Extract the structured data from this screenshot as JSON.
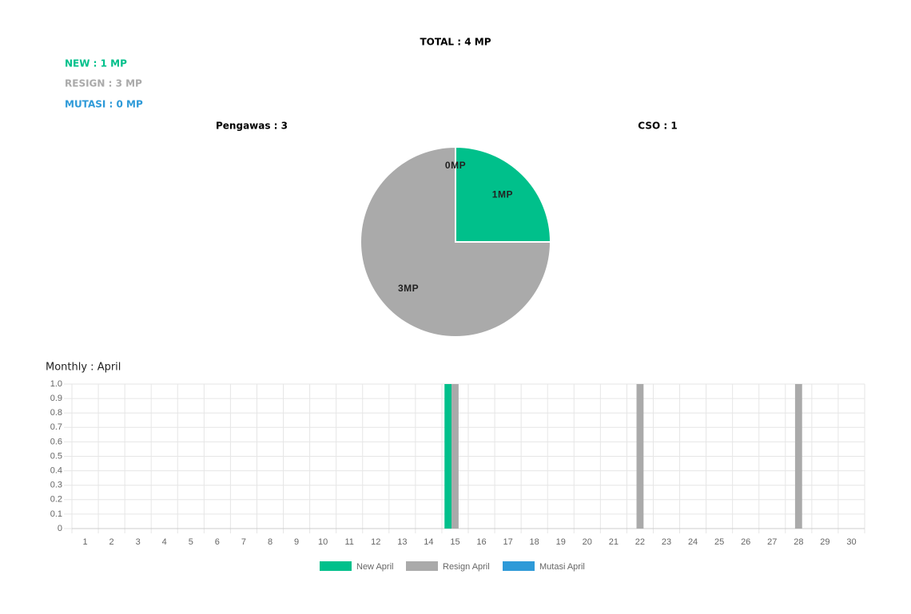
{
  "summary": {
    "total": "TOTAL : 4 MP",
    "new": "NEW : 1 MP",
    "resign": "RESIGN : 3 MP",
    "mutasi": "MUTASI : 0 MP",
    "groups": [
      "Pengawas : 3",
      "CSO : 1"
    ]
  },
  "chart_data": [
    {
      "type": "pie",
      "values": [
        1,
        3,
        0
      ],
      "value_labels": [
        "1MP",
        "3MP",
        "0MP"
      ],
      "colors": [
        "#00c08b",
        "#aaaaaa",
        "#2e9ad8"
      ]
    },
    {
      "type": "bar",
      "title": "Monthly : April",
      "categories": [
        "1",
        "2",
        "3",
        "4",
        "5",
        "6",
        "7",
        "8",
        "9",
        "10",
        "11",
        "12",
        "13",
        "14",
        "15",
        "16",
        "17",
        "18",
        "19",
        "20",
        "21",
        "22",
        "23",
        "24",
        "25",
        "26",
        "27",
        "28",
        "29",
        "30"
      ],
      "series": [
        {
          "name": "New April",
          "color": "#00c08b",
          "values": [
            0,
            0,
            0,
            0,
            0,
            0,
            0,
            0,
            0,
            0,
            0,
            0,
            0,
            0,
            1,
            0,
            0,
            0,
            0,
            0,
            0,
            0,
            0,
            0,
            0,
            0,
            0,
            0,
            0,
            0
          ]
        },
        {
          "name": "Resign April",
          "color": "#aaaaaa",
          "values": [
            0,
            0,
            0,
            0,
            0,
            0,
            0,
            0,
            0,
            0,
            0,
            0,
            0,
            0,
            1,
            0,
            0,
            0,
            0,
            0,
            0,
            1,
            0,
            0,
            0,
            0,
            0,
            1,
            0,
            0
          ]
        },
        {
          "name": "Mutasi April",
          "color": "#2e9ad8",
          "values": [
            0,
            0,
            0,
            0,
            0,
            0,
            0,
            0,
            0,
            0,
            0,
            0,
            0,
            0,
            0,
            0,
            0,
            0,
            0,
            0,
            0,
            0,
            0,
            0,
            0,
            0,
            0,
            0,
            0,
            0
          ]
        }
      ],
      "ylim": [
        0,
        1
      ],
      "yticks": [
        0,
        0.1,
        0.2,
        0.3,
        0.4,
        0.5,
        0.6,
        0.7,
        0.8,
        0.9,
        {
          "value": 1,
          "label": "1.0"
        }
      ],
      "grid": true
    }
  ]
}
